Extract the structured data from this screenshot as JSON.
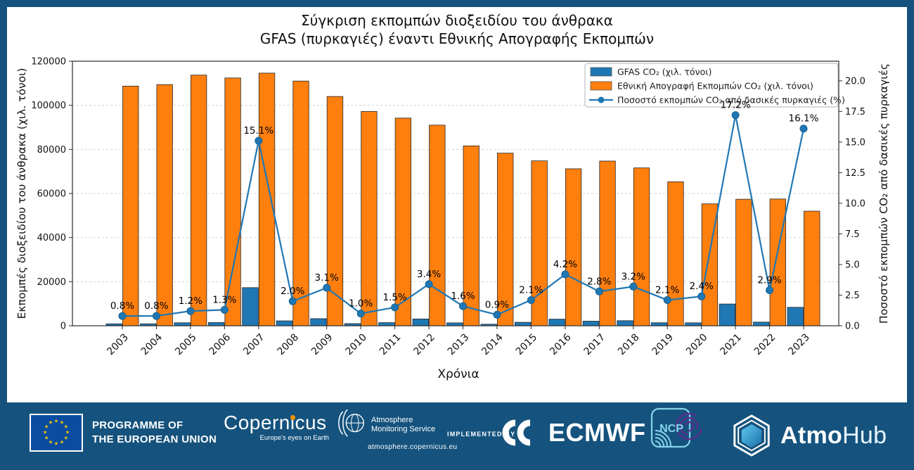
{
  "page": {
    "background_color": "#15537E",
    "panel_color": "#ffffff"
  },
  "chart_data": {
    "type": "bar+line",
    "title_line1": "Σύγκριση εκπομπών διοξειδίου του άνθρακα",
    "title_line2": "GFAS (πυρκαγιές) έναντι Εθνικής Απογραφής Εκπομπών",
    "xlabel": "Χρόνια",
    "ylabel_left": "Εκπομπές διοξειδίου του άνθρακα (χιλ. τόνοι)",
    "ylabel_right": "Ποσοστό εκπομπών CO₂ από δασικές πυρκαγιές",
    "categories": [
      "2003",
      "2004",
      "2005",
      "2006",
      "2007",
      "2008",
      "2009",
      "2010",
      "2011",
      "2012",
      "2013",
      "2014",
      "2015",
      "2016",
      "2017",
      "2018",
      "2019",
      "2020",
      "2021",
      "2022",
      "2023"
    ],
    "series": [
      {
        "name": "GFAS CO₂ (χιλ. τόνοι)",
        "type": "bar",
        "axis": "left",
        "color": "#1f77b4",
        "values": [
          870,
          880,
          1360,
          1460,
          17300,
          2220,
          3220,
          970,
          1410,
          3090,
          1310,
          700,
          1570,
          2990,
          2090,
          2290,
          1370,
          1330,
          9870,
          1670,
          8370
        ]
      },
      {
        "name": "Εθνική Απογραφή Εκπομπών CO₂ (χιλ. τόνοι)",
        "type": "bar",
        "axis": "left",
        "color": "#ff7f0e",
        "values": [
          108700,
          109400,
          113700,
          112400,
          114600,
          111000,
          104000,
          97200,
          94200,
          91000,
          81600,
          78300,
          74800,
          71200,
          74700,
          71600,
          65300,
          55300,
          57400,
          57500,
          52000
        ]
      },
      {
        "name": "Ποσοστό εκπομπών CO₂ από δασικές πυρκαγιές (%)",
        "type": "line",
        "axis": "right",
        "color": "#1f77b4",
        "values": [
          0.8,
          0.8,
          1.2,
          1.3,
          15.1,
          2.0,
          3.1,
          1.0,
          1.5,
          3.4,
          1.6,
          0.9,
          2.1,
          4.2,
          2.8,
          3.2,
          2.1,
          2.4,
          17.2,
          2.9,
          16.1
        ],
        "point_labels": [
          "0.8%",
          "0.8%",
          "1.2%",
          "1.3%",
          "15.1%",
          "2.0%",
          "3.1%",
          "1.0%",
          "1.5%",
          "3.4%",
          "1.6%",
          "0.9%",
          "2.1%",
          "4.2%",
          "2.8%",
          "3.2%",
          "2.1%",
          "2.4%",
          "17.2%",
          "2.9%",
          "16.1%"
        ]
      }
    ],
    "axes": {
      "ylim_left": [
        0,
        120000
      ],
      "yticks_left": [
        0,
        20000,
        40000,
        60000,
        80000,
        100000,
        120000
      ],
      "ylim_right": [
        0,
        21.6
      ],
      "yticks_right": [
        0,
        2.5,
        5,
        7.5,
        10,
        12.5,
        15,
        17.5,
        20
      ],
      "grid": "horizontal dashed at left-axis ticks",
      "legend_position": "upper right"
    }
  },
  "footer": {
    "eu": {
      "line1": "PROGRAMME OF",
      "line2": "THE EUROPEAN UNION"
    },
    "copernicus": {
      "name": "Copernicus",
      "tagline": "Europe's eyes on Earth"
    },
    "ams": {
      "line1": "Atmosphere",
      "line2": "Monitoring Service",
      "url": "atmosphere.copernicus.eu"
    },
    "implemented_by": "IMPLEMENTED BY",
    "ecmwf": {
      "wordmark": "ECMWF"
    },
    "ncp": {
      "letters": "NCP"
    },
    "atmohub": {
      "bold": "Atmo",
      "light": "Hub"
    }
  }
}
